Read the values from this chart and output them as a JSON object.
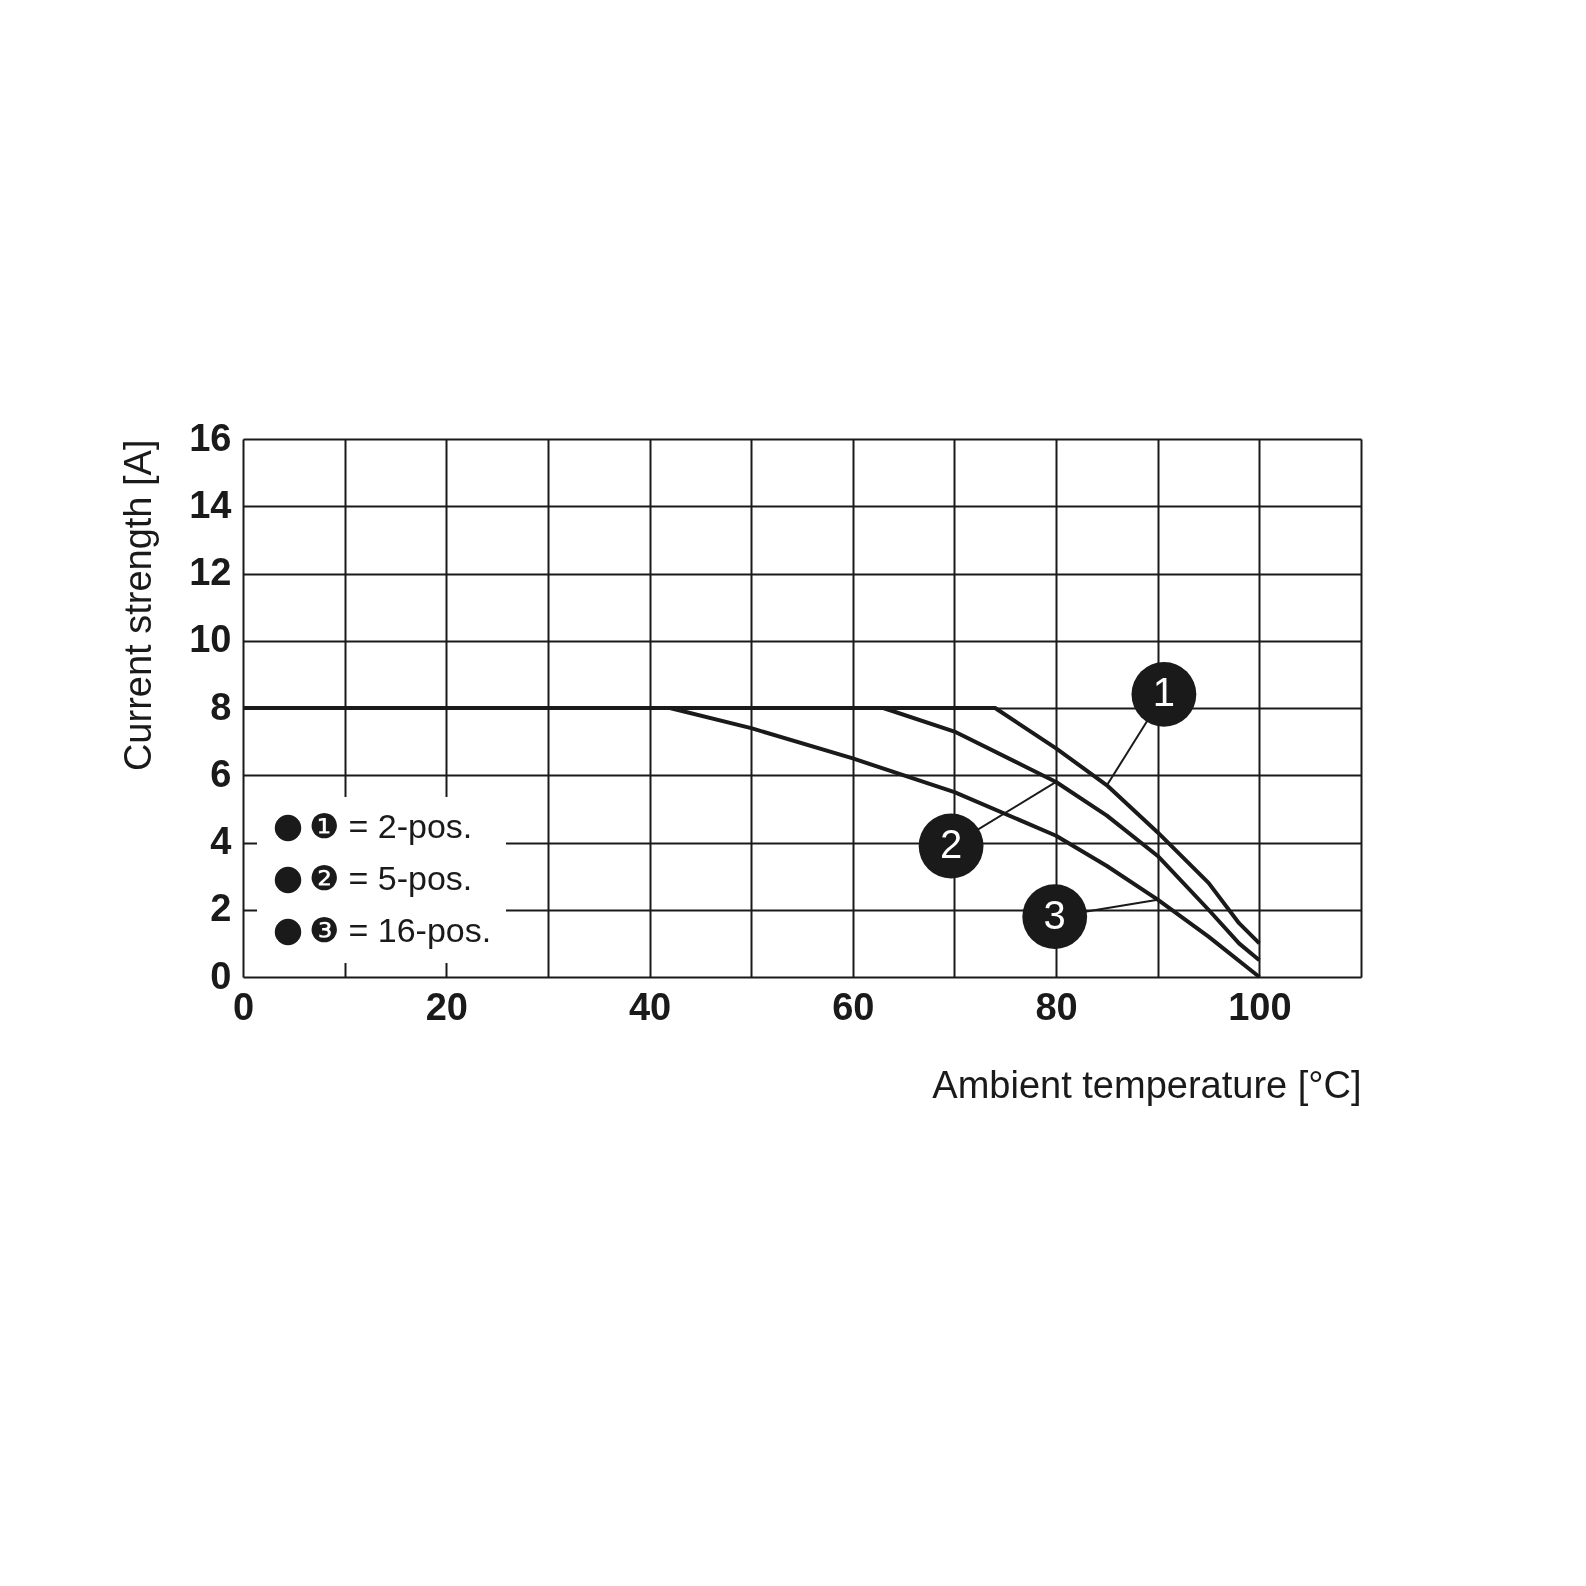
{
  "chart_data": {
    "type": "line",
    "xlabel": "Ambient temperature [°C]",
    "ylabel": "Current strength [A]",
    "xlim": [
      0,
      110
    ],
    "ylim": [
      0,
      16
    ],
    "xticks": [
      0,
      {
        "value": 10,
        "label": null
      },
      20,
      {
        "value": 30,
        "label": null
      },
      40,
      {
        "value": 50,
        "label": null
      },
      60,
      {
        "value": 70,
        "label": null
      },
      80,
      {
        "value": 90,
        "label": null
      },
      100,
      {
        "value": 110,
        "label": null
      }
    ],
    "yticks": [
      0,
      2,
      4,
      6,
      8,
      10,
      12,
      14,
      16
    ],
    "grid": true,
    "legend": "bottom left",
    "marker": "none",
    "line_style": "solid",
    "series": [
      {
        "name": "❶ = 2-pos.",
        "color": "#1a1a1a",
        "x": [
          0,
          74,
          80,
          85,
          90,
          95,
          98,
          100
        ],
        "values": [
          8,
          8,
          6.8,
          5.7,
          4.3,
          2.8,
          1.6,
          1.0
        ]
      },
      {
        "name": "❷ = 5-pos.",
        "color": "#1a1a1a",
        "x": [
          0,
          63,
          70,
          80,
          85,
          90,
          95,
          98,
          100
        ],
        "values": [
          8,
          8,
          7.3,
          5.8,
          4.8,
          3.6,
          2.0,
          1.0,
          0.5
        ]
      },
      {
        "name": "❸ = 16-pos.",
        "color": "#1a1a1a",
        "x": [
          0,
          42,
          50,
          60,
          70,
          80,
          85,
          90,
          95,
          100
        ],
        "values": [
          8,
          8,
          7.4,
          6.5,
          5.5,
          4.2,
          3.3,
          2.3,
          1.2,
          0
        ]
      }
    ],
    "annotations": [
      {
        "text": "1",
        "x": 85,
        "y": 5.7
      },
      {
        "text": "2",
        "x": 80,
        "y": 5.8
      },
      {
        "text": "3",
        "x": 90,
        "y": 2.3
      }
    ]
  }
}
